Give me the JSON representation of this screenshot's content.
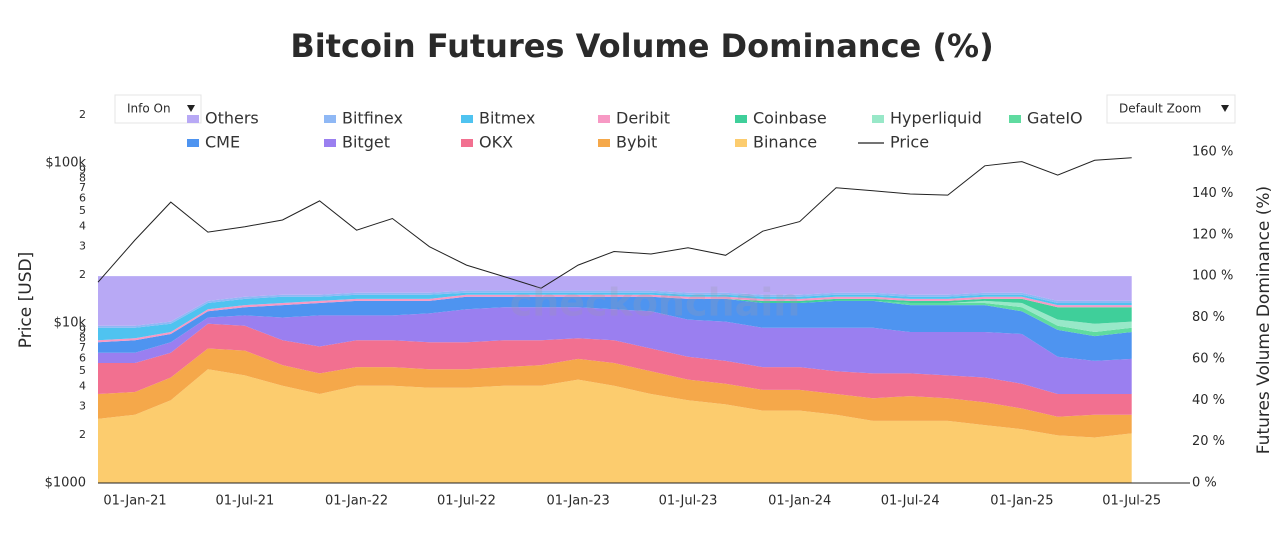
{
  "controls": {
    "info": "Info On",
    "zoom": "Default Zoom"
  },
  "chart_data": {
    "type": "area",
    "stacked": true,
    "title": "Bitcoin Futures Volume Dominance (%)",
    "watermark": "checkonchain",
    "y_label": "Price [USD]",
    "y2_label": "Futures Volume Dominance (%)",
    "log_y": true,
    "x": [
      "2020-11-01",
      "2021-01-01",
      "2021-03-01",
      "2021-05-01",
      "2021-07-01",
      "2021-09-01",
      "2021-11-01",
      "2022-01-01",
      "2022-03-01",
      "2022-05-01",
      "2022-07-01",
      "2022-09-01",
      "2022-11-01",
      "2023-01-01",
      "2023-03-01",
      "2023-05-01",
      "2023-07-01",
      "2023-09-01",
      "2023-11-01",
      "2024-01-01",
      "2024-03-01",
      "2024-05-01",
      "2024-07-01",
      "2024-09-01",
      "2024-11-01",
      "2025-01-01",
      "2025-03-01",
      "2025-05-01",
      "2025-07-01"
    ],
    "xlim": [
      "2020-11-01",
      "2025-10-05"
    ],
    "xticks": [
      {
        "value": "2021-01-01",
        "label": "01-Jan-21"
      },
      {
        "value": "2021-07-01",
        "label": "01-Jul-21"
      },
      {
        "value": "2022-01-01",
        "label": "01-Jan-22"
      },
      {
        "value": "2022-07-01",
        "label": "01-Jul-22"
      },
      {
        "value": "2023-01-01",
        "label": "01-Jan-23"
      },
      {
        "value": "2023-07-01",
        "label": "01-Jul-23"
      },
      {
        "value": "2024-01-01",
        "label": "01-Jan-24"
      },
      {
        "value": "2024-07-01",
        "label": "01-Jul-24"
      },
      {
        "value": "2025-01-01",
        "label": "01-Jan-25"
      },
      {
        "value": "2025-07-01",
        "label": "01-Jul-25"
      }
    ],
    "ylim": [
      1000,
      200000
    ],
    "yticks": [
      {
        "value": 1000,
        "label": "$1000"
      },
      2000,
      3000,
      4000,
      5000,
      6000,
      7000,
      8000,
      9000,
      {
        "value": 2000,
        "label": "2"
      },
      {
        "value": 3000,
        "label": "3"
      },
      {
        "value": 4000,
        "label": "4"
      },
      {
        "value": 5000,
        "label": "5"
      },
      {
        "value": 6000,
        "label": "6"
      },
      {
        "value": 7000,
        "label": "7"
      },
      {
        "value": 8000,
        "label": "8"
      },
      {
        "value": 9000,
        "label": "9"
      },
      {
        "value": 10000,
        "label": "$10k"
      },
      {
        "value": 20000,
        "label": "2"
      },
      {
        "value": 30000,
        "label": "3"
      },
      {
        "value": 40000,
        "label": "4"
      },
      {
        "value": 50000,
        "label": "5"
      },
      {
        "value": 60000,
        "label": "6"
      },
      {
        "value": 70000,
        "label": "7"
      },
      {
        "value": 80000,
        "label": "8"
      },
      {
        "value": 90000,
        "label": "9"
      },
      {
        "value": 100000,
        "label": "$100k"
      },
      {
        "value": 200000,
        "label": "2"
      }
    ],
    "y2lim": [
      0,
      160
    ],
    "y2ticks": [
      {
        "value": 0,
        "label": "0 %"
      },
      {
        "value": 20,
        "label": "20 %"
      },
      {
        "value": 40,
        "label": "40 %"
      },
      {
        "value": 60,
        "label": "60 %"
      },
      {
        "value": 80,
        "label": "80 %"
      },
      {
        "value": 100,
        "label": "100 %"
      },
      {
        "value": 120,
        "label": "120 %"
      },
      {
        "value": 140,
        "label": "140 %"
      },
      {
        "value": 160,
        "label": "160 %"
      }
    ],
    "series": [
      {
        "name": "Others",
        "color": "#b8a9f5",
        "axis": "y2",
        "values": [
          24,
          24,
          22,
          12,
          10,
          9,
          9,
          8,
          8,
          8,
          7,
          7,
          7,
          7,
          7,
          7,
          8,
          8,
          9,
          9,
          8,
          8,
          9,
          9,
          8,
          8,
          12,
          12,
          12
        ]
      },
      {
        "name": "Bitfinex",
        "color": "#8fb8f5",
        "axis": "y2",
        "values": [
          1,
          1,
          1,
          1,
          1,
          1,
          1,
          1,
          1,
          1,
          1,
          1,
          1,
          1,
          1,
          1,
          1,
          1,
          1,
          1,
          1,
          1,
          1,
          1,
          1,
          1,
          1,
          1,
          1
        ]
      },
      {
        "name": "Bitmex",
        "color": "#4fc3f0",
        "axis": "y2",
        "values": [
          6,
          5,
          4,
          3,
          3,
          3,
          2,
          2,
          2,
          2,
          1,
          1,
          1,
          1,
          1,
          1,
          1,
          1,
          1,
          1,
          1,
          1,
          1,
          1,
          1,
          1,
          1,
          1,
          1
        ]
      },
      {
        "name": "Deribit",
        "color": "#f799c4",
        "axis": "y2",
        "values": [
          1,
          1,
          1,
          1,
          1,
          1,
          1,
          1,
          1,
          1,
          1,
          1,
          1,
          1,
          1,
          1,
          1,
          1,
          1,
          1,
          1,
          1,
          1,
          1,
          1,
          1,
          1,
          1,
          1
        ]
      },
      {
        "name": "Coinbase",
        "color": "#3fcf9a",
        "axis": "y2",
        "values": [
          0,
          0,
          0,
          0,
          0,
          0,
          0,
          0,
          0,
          0,
          0,
          0,
          0,
          0,
          0,
          0,
          0,
          0,
          1,
          1,
          1,
          1,
          1,
          1,
          1,
          2,
          6,
          8,
          7
        ]
      },
      {
        "name": "Hyperliquid",
        "color": "#98e8c8",
        "axis": "y2",
        "values": [
          0,
          0,
          0,
          0,
          0,
          0,
          0,
          0,
          0,
          0,
          0,
          0,
          0,
          0,
          0,
          0,
          0,
          0,
          0,
          0,
          0,
          0,
          0,
          0,
          1,
          2,
          3,
          4,
          3
        ]
      },
      {
        "name": "GateIO",
        "color": "#5fdba0",
        "axis": "y2",
        "values": [
          0,
          0,
          0,
          0,
          0,
          0,
          0,
          0,
          0,
          0,
          0,
          0,
          0,
          0,
          0,
          0,
          0,
          0,
          0,
          0,
          0,
          0,
          1,
          1,
          1,
          2,
          2,
          2,
          2
        ]
      },
      {
        "name": "CME",
        "color": "#4e94f0",
        "axis": "y2",
        "values": [
          5,
          6,
          4,
          3,
          4,
          6,
          6,
          7,
          7,
          6,
          6,
          5,
          5,
          5,
          6,
          7,
          10,
          11,
          12,
          12,
          13,
          13,
          13,
          13,
          13,
          11,
          13,
          12,
          13
        ]
      },
      {
        "name": "Bitget",
        "color": "#9a7ff0",
        "axis": "y2",
        "values": [
          5,
          5,
          5,
          3,
          5,
          11,
          15,
          12,
          12,
          14,
          16,
          16,
          16,
          15,
          15,
          18,
          18,
          19,
          19,
          19,
          21,
          22,
          20,
          21,
          22,
          24,
          18,
          16,
          17
        ]
      },
      {
        "name": "OKX",
        "color": "#f27090",
        "axis": "y2",
        "values": [
          15,
          14,
          12,
          12,
          12,
          12,
          13,
          13,
          13,
          13,
          13,
          13,
          12,
          10,
          11,
          11,
          11,
          11,
          11,
          11,
          11,
          12,
          11,
          11,
          12,
          12,
          11,
          10,
          10
        ]
      },
      {
        "name": "Bybit",
        "color": "#f5a84a",
        "axis": "y2",
        "values": [
          12,
          11,
          11,
          10,
          12,
          10,
          10,
          9,
          9,
          9,
          9,
          9,
          10,
          10,
          11,
          11,
          10,
          10,
          10,
          10,
          10,
          11,
          12,
          11,
          11,
          10,
          9,
          11,
          9
        ]
      },
      {
        "name": "Binance",
        "color": "#fccc6e",
        "axis": "y2",
        "values": [
          31,
          33,
          40,
          55,
          52,
          47,
          43,
          47,
          47,
          46,
          46,
          47,
          47,
          50,
          47,
          43,
          40,
          38,
          35,
          35,
          33,
          30,
          30,
          30,
          28,
          26,
          23,
          22,
          24
        ]
      },
      {
        "name": "Price",
        "color": "#222222",
        "axis": "y",
        "type": "line",
        "values": [
          18000,
          33000,
          57000,
          37000,
          40000,
          44000,
          58000,
          38000,
          45000,
          30000,
          23000,
          19500,
          16500,
          23000,
          28000,
          27000,
          29500,
          26500,
          37500,
          43000,
          70000,
          67000,
          64000,
          63000,
          96000,
          102000,
          84000,
          104000,
          108000
        ]
      }
    ]
  }
}
